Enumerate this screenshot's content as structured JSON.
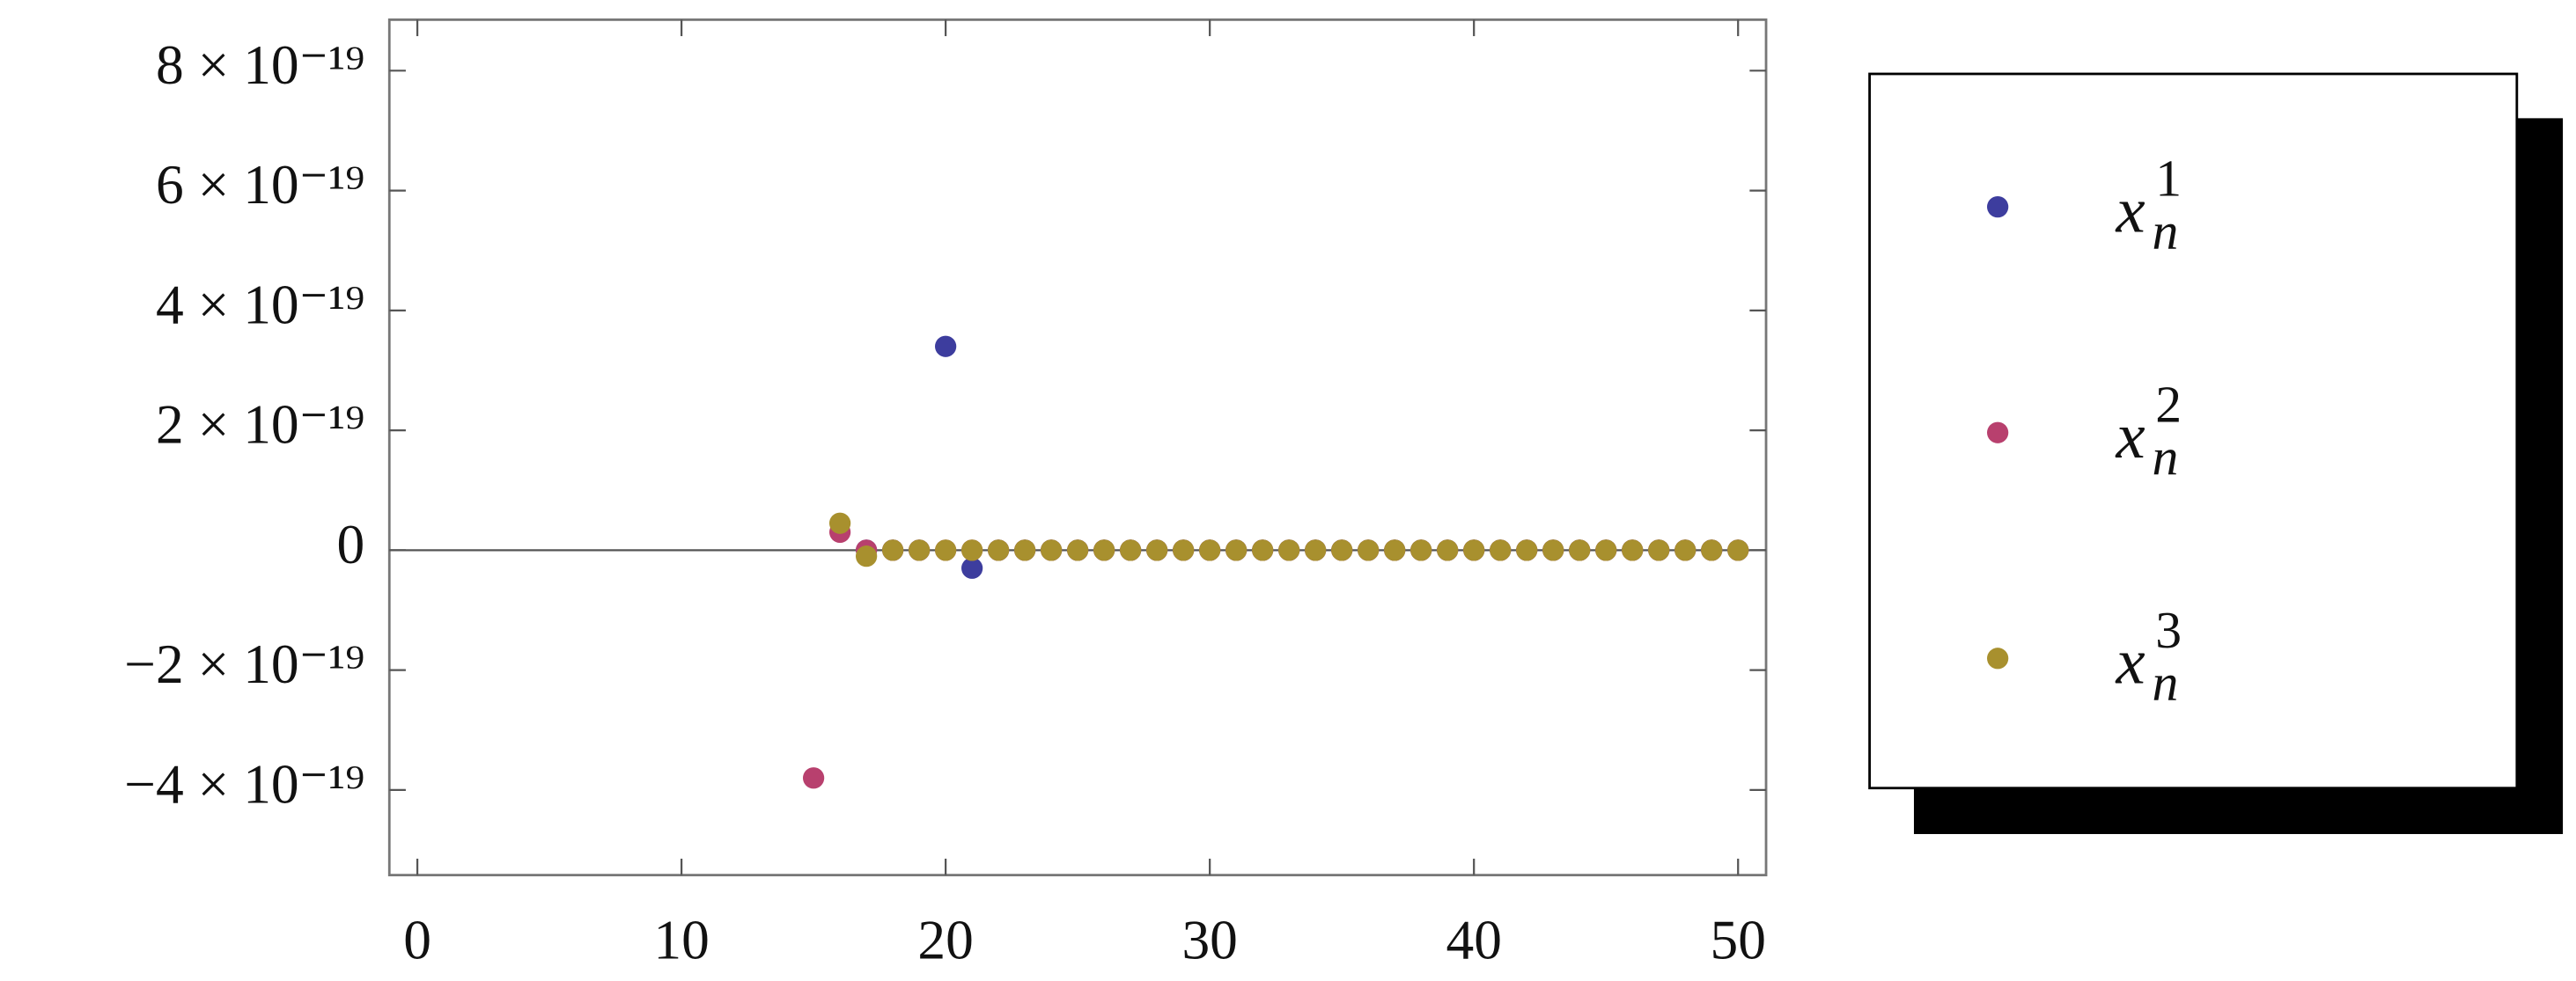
{
  "chart_data": {
    "type": "scatter",
    "xlim": [
      -1.06,
      51.06
    ],
    "xticks": [
      0,
      10,
      20,
      30,
      40,
      50
    ],
    "ylim": [
      -5.42e-19,
      8.85e-19
    ],
    "yticks": [
      {
        "value": 8e-19,
        "label": "8 × 10⁻¹⁹"
      },
      {
        "value": 6e-19,
        "label": "6 × 10⁻¹⁹"
      },
      {
        "value": 4e-19,
        "label": "4 × 10⁻¹⁹"
      },
      {
        "value": 2e-19,
        "label": "2 × 10⁻¹⁹"
      },
      0,
      {
        "value": -2e-19,
        "label": "−2 × 10⁻¹⁹"
      },
      {
        "value": -4e-19,
        "label": "−4 × 10⁻¹⁹"
      }
    ],
    "series": [
      {
        "name": "x",
        "superscript": "1",
        "subscript": "n",
        "color": "#3d3d9e",
        "x": [
          17,
          18,
          19,
          20,
          21,
          22,
          23,
          24,
          25,
          26,
          27,
          28,
          29,
          30,
          31,
          32,
          33,
          34,
          35,
          36,
          37,
          38,
          39,
          40,
          41,
          42,
          43,
          44,
          45,
          46,
          47,
          48,
          49,
          50
        ],
        "values": [
          0,
          0,
          0,
          3.4e-19,
          -3e-20,
          0,
          0,
          0,
          0,
          0,
          0,
          0,
          0,
          0,
          0,
          0,
          0,
          0,
          0,
          0,
          0,
          0,
          0,
          0,
          0,
          0,
          0,
          0,
          0,
          0,
          0,
          0,
          0,
          0
        ]
      },
      {
        "name": "x",
        "superscript": "2",
        "subscript": "n",
        "color": "#b8406e",
        "x": [
          15,
          16,
          17,
          18,
          19,
          20,
          21,
          22,
          23,
          24,
          25,
          26,
          27,
          28,
          29,
          30,
          31,
          32,
          33,
          34,
          35,
          36,
          37,
          38,
          39,
          40,
          41,
          42,
          43,
          44,
          45,
          46,
          47,
          48,
          49,
          50
        ],
        "values": [
          -3.8e-19,
          3e-20,
          0,
          0,
          0,
          0,
          0,
          0,
          0,
          0,
          0,
          0,
          0,
          0,
          0,
          0,
          0,
          0,
          0,
          0,
          0,
          0,
          0,
          0,
          0,
          0,
          0,
          0,
          0,
          0,
          0,
          0,
          0,
          0,
          0,
          0
        ]
      },
      {
        "name": "x",
        "superscript": "3",
        "subscript": "n",
        "color": "#a8902e",
        "x": [
          16,
          17,
          18,
          19,
          20,
          21,
          22,
          23,
          24,
          25,
          26,
          27,
          28,
          29,
          30,
          31,
          32,
          33,
          34,
          35,
          36,
          37,
          38,
          39,
          40,
          41,
          42,
          43,
          44,
          45,
          46,
          47,
          48,
          49,
          50
        ],
        "values": [
          4.5e-20,
          -1e-20,
          0,
          0,
          0,
          0,
          0,
          0,
          0,
          0,
          0,
          0,
          0,
          0,
          0,
          0,
          0,
          0,
          0,
          0,
          0,
          0,
          0,
          0,
          0,
          0,
          0,
          0,
          0,
          0,
          0,
          0,
          0,
          0,
          0
        ]
      }
    ]
  }
}
